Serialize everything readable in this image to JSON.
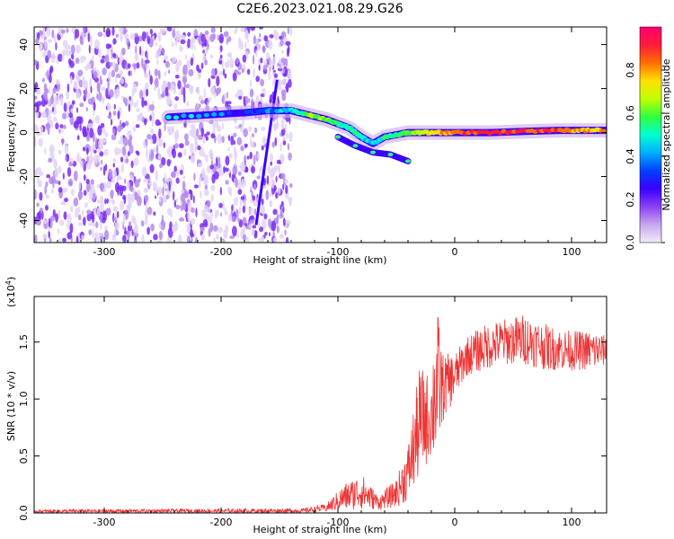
{
  "title": "C2E6.2023.021.08.29.G26",
  "chart_data": [
    {
      "type": "heatmap",
      "name": "spectrogram",
      "xlabel": "Height of straight line (km)",
      "ylabel": "Frequency (Hz)",
      "xlim": [
        -360,
        130
      ],
      "ylim": [
        -50,
        48
      ],
      "xticks": [
        -300,
        -200,
        -100,
        0,
        100
      ],
      "yticks": [
        -40,
        -20,
        0,
        20,
        40
      ],
      "colorbar": {
        "label": "Normalized spectral amplitude",
        "range": [
          0,
          1
        ],
        "ticks": [
          "0.0",
          "0.2",
          "0.4",
          "0.6",
          "0.8"
        ],
        "colors": [
          "#f4eaf8",
          "#c9a8ee",
          "#8a3ff3",
          "#3a00ff",
          "#0040ff",
          "#00b0ff",
          "#00ffd0",
          "#30ff40",
          "#c0ff00",
          "#ffe000",
          "#ff7000",
          "#ff1a3a",
          "#ff0070"
        ]
      },
      "noise_region": {
        "x_range": [
          -360,
          -140
        ],
        "f_range": [
          -50,
          48
        ]
      },
      "diagonal_line": [
        [
          -170,
          -42
        ],
        [
          -152,
          24
        ]
      ],
      "signal_track": [
        {
          "x": -245,
          "f": 7,
          "amp": 0.5
        },
        {
          "x": -180,
          "f": 9,
          "amp": 0.3
        },
        {
          "x": -160,
          "f": 10,
          "amp": 0.35
        },
        {
          "x": -140,
          "f": 10,
          "amp": 0.45
        },
        {
          "x": -125,
          "f": 8,
          "amp": 0.6
        },
        {
          "x": -110,
          "f": 6,
          "amp": 0.6
        },
        {
          "x": -100,
          "f": 4,
          "amp": 0.55
        },
        {
          "x": -90,
          "f": 2,
          "amp": 0.5
        },
        {
          "x": -80,
          "f": -2,
          "amp": 0.5
        },
        {
          "x": -70,
          "f": -5,
          "amp": 0.45
        },
        {
          "x": -60,
          "f": -2,
          "amp": 0.5
        },
        {
          "x": -50,
          "f": -1,
          "amp": 0.55
        },
        {
          "x": -40,
          "f": 0,
          "amp": 0.6
        },
        {
          "x": -30,
          "f": 0,
          "amp": 0.65
        },
        {
          "x": -15,
          "f": 0,
          "amp": 0.75
        },
        {
          "x": 0,
          "f": 0,
          "amp": 0.85
        },
        {
          "x": 30,
          "f": 0,
          "amp": 0.9
        },
        {
          "x": 60,
          "f": 0.5,
          "amp": 0.9
        },
        {
          "x": 90,
          "f": 1,
          "amp": 0.85
        },
        {
          "x": 110,
          "f": 1,
          "amp": 0.8
        },
        {
          "x": 130,
          "f": 1,
          "amp": 0.75
        }
      ],
      "secondary_track": [
        {
          "x": -100,
          "f": -2
        },
        {
          "x": -85,
          "f": -6
        },
        {
          "x": -70,
          "f": -9
        },
        {
          "x": -55,
          "f": -10
        },
        {
          "x": -40,
          "f": -13
        }
      ]
    },
    {
      "type": "line",
      "name": "snr",
      "xlabel": "Height of straight line (km)",
      "ylabel": "SNR (10 * v/v)",
      "yscale_label": "(x10",
      "yscale_exp": "4",
      "yscale_close": ")",
      "xlim": [
        -360,
        130
      ],
      "ylim": [
        0,
        1.9
      ],
      "xticks": [
        -300,
        -200,
        -100,
        0,
        100
      ],
      "yticks": [
        "0.0",
        "0.5",
        "1.0",
        "1.5"
      ],
      "color": "#ee3333",
      "series_envelope": [
        {
          "x": -360,
          "low": 0.0,
          "high": 0.03
        },
        {
          "x": -130,
          "low": 0.0,
          "high": 0.04
        },
        {
          "x": -110,
          "low": 0.01,
          "high": 0.08
        },
        {
          "x": -95,
          "low": 0.02,
          "high": 0.25
        },
        {
          "x": -80,
          "low": 0.03,
          "high": 0.35
        },
        {
          "x": -65,
          "low": 0.03,
          "high": 0.15
        },
        {
          "x": -50,
          "low": 0.05,
          "high": 0.3
        },
        {
          "x": -40,
          "low": 0.1,
          "high": 0.6
        },
        {
          "x": -30,
          "low": 0.3,
          "high": 1.3
        },
        {
          "x": -20,
          "low": 0.5,
          "high": 1.2
        },
        {
          "x": -16,
          "low": 0.4,
          "high": 1.9
        },
        {
          "x": -10,
          "low": 0.8,
          "high": 1.4
        },
        {
          "x": 0,
          "low": 1.0,
          "high": 1.4
        },
        {
          "x": 10,
          "low": 1.2,
          "high": 1.55
        },
        {
          "x": 25,
          "low": 1.25,
          "high": 1.65
        },
        {
          "x": 40,
          "low": 1.3,
          "high": 1.7
        },
        {
          "x": 60,
          "low": 1.3,
          "high": 1.75
        },
        {
          "x": 80,
          "low": 1.25,
          "high": 1.65
        },
        {
          "x": 100,
          "low": 1.25,
          "high": 1.6
        },
        {
          "x": 120,
          "low": 1.25,
          "high": 1.6
        },
        {
          "x": 130,
          "low": 1.3,
          "high": 1.55
        }
      ]
    }
  ]
}
